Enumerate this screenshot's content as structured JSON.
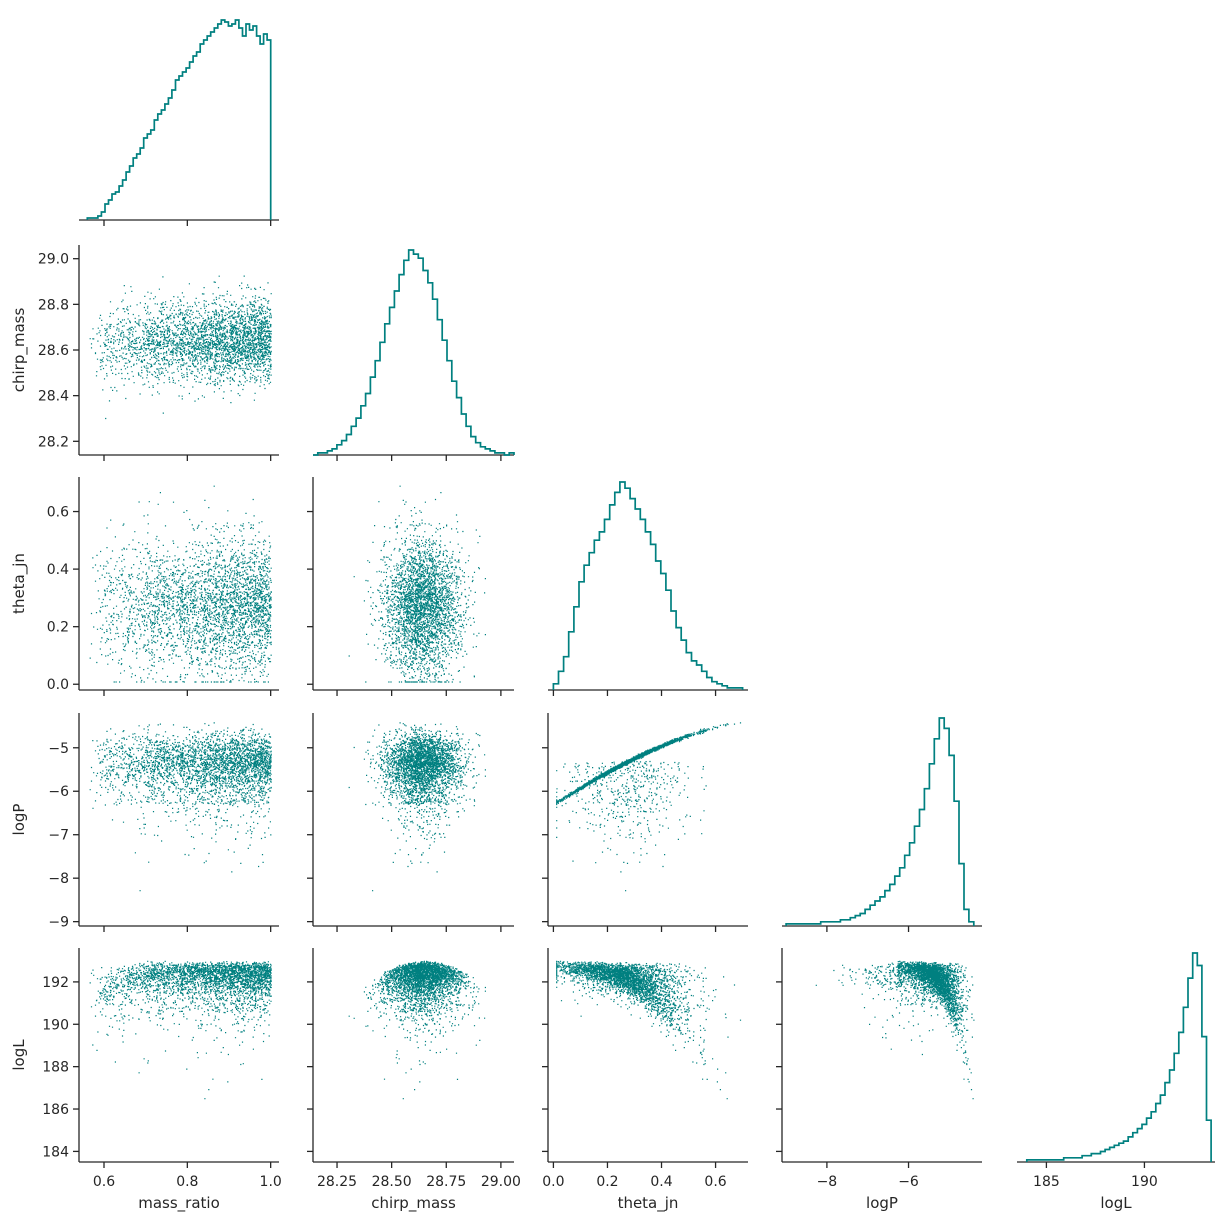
{
  "chart_data": {
    "type": "scatter",
    "title": "",
    "marker_color": "#008080",
    "grid": false,
    "legend": "none",
    "variables": [
      {
        "name": "mass_ratio",
        "label": "mass_ratio",
        "range": [
          0.54,
          1.02
        ],
        "ticks": [
          0.6,
          0.8,
          1.0
        ],
        "tick_labels": [
          "0.6",
          "0.8",
          "1.0"
        ]
      },
      {
        "name": "chirp_mass",
        "label": "chirp_mass",
        "range": [
          28.14,
          29.06
        ],
        "ticks": [
          28.25,
          28.5,
          28.75,
          29.0
        ],
        "tick_labels": [
          "28.25",
          "28.50",
          "28.75",
          "29.00"
        ],
        "y_ticks": [
          28.2,
          28.4,
          28.6,
          28.8,
          29.0
        ],
        "y_tick_labels": [
          "28.2",
          "28.4",
          "28.6",
          "28.8",
          "29.0"
        ]
      },
      {
        "name": "theta_jn",
        "label": "theta_jn",
        "range": [
          -0.02,
          0.72
        ],
        "ticks": [
          0.0,
          0.2,
          0.4,
          0.6
        ],
        "tick_labels": [
          "0.0",
          "0.2",
          "0.4",
          "0.6"
        ]
      },
      {
        "name": "logP",
        "label": "logP",
        "range": [
          -9.1,
          -4.2
        ],
        "ticks": [
          -8,
          -6
        ],
        "tick_labels": [
          "−8",
          "−6"
        ],
        "y_ticks": [
          -9,
          -8,
          -7,
          -6,
          -5
        ],
        "y_tick_labels": [
          "−9",
          "−8",
          "−7",
          "−6",
          "−5"
        ]
      },
      {
        "name": "logL",
        "label": "logL",
        "range": [
          183.5,
          193.6
        ],
        "ticks": [
          185,
          190
        ],
        "tick_labels": [
          "185",
          "190"
        ],
        "y_ticks": [
          184,
          186,
          188,
          190,
          192
        ],
        "y_tick_labels": [
          "184",
          "186",
          "188",
          "190",
          "192"
        ]
      }
    ],
    "diagonal_histograms": {
      "mass_ratio": {
        "bin_edges": [
          0.56,
          1.0
        ],
        "counts": [
          1,
          1,
          1,
          2,
          4,
          8,
          10,
          13,
          14,
          17,
          20,
          24,
          27,
          31,
          33,
          36,
          41,
          43,
          45,
          50,
          53,
          55,
          58,
          61,
          65,
          70,
          72,
          74,
          76,
          79,
          82,
          84,
          88,
          90,
          92,
          94,
          96,
          98,
          100,
          99,
          97,
          98,
          100,
          96,
          92,
          98,
          95,
          97,
          92,
          88,
          93,
          90
        ]
      },
      "chirp_mass": {
        "bin_edges": [
          28.14,
          29.06
        ],
        "counts": [
          0,
          1,
          1,
          2,
          3,
          5,
          7,
          10,
          14,
          18,
          24,
          30,
          38,
          46,
          55,
          64,
          72,
          80,
          88,
          95,
          100,
          98,
          96,
          90,
          84,
          76,
          66,
          56,
          46,
          36,
          28,
          20,
          14,
          9,
          6,
          4,
          3,
          2,
          1,
          1,
          0,
          1
        ]
      },
      "theta_jn": {
        "bin_edges": [
          0.0,
          0.7
        ],
        "counts": [
          3,
          9,
          16,
          28,
          40,
          52,
          60,
          66,
          72,
          76,
          82,
          89,
          95,
          100,
          97,
          92,
          87,
          82,
          76,
          70,
          62,
          56,
          48,
          38,
          30,
          24,
          18,
          14,
          12,
          9,
          6,
          4,
          3,
          2,
          1,
          1,
          1
        ]
      },
      "logP": {
        "bin_edges": [
          -9.0,
          -4.4
        ],
        "counts": [
          1,
          1,
          1,
          1,
          1,
          1,
          1,
          2,
          2,
          2,
          2,
          3,
          3,
          4,
          5,
          6,
          8,
          10,
          12,
          14,
          17,
          20,
          24,
          28,
          34,
          40,
          48,
          56,
          66,
          78,
          90,
          100,
          95,
          82,
          60,
          30,
          8,
          2
        ]
      },
      "logL": {
        "bin_edges": [
          184.0,
          193.4
        ],
        "counts": [
          1,
          1,
          1,
          1,
          1,
          1,
          1,
          1,
          2,
          2,
          2,
          2,
          3,
          3,
          4,
          4,
          5,
          6,
          7,
          8,
          9,
          10,
          12,
          14,
          16,
          18,
          21,
          24,
          28,
          32,
          38,
          44,
          52,
          62,
          74,
          88,
          100,
          94,
          60,
          20
        ]
      }
    },
    "scatter_description": "Pairwise scatter panels of posterior samples (lower triangle); marker size 1px"
  }
}
